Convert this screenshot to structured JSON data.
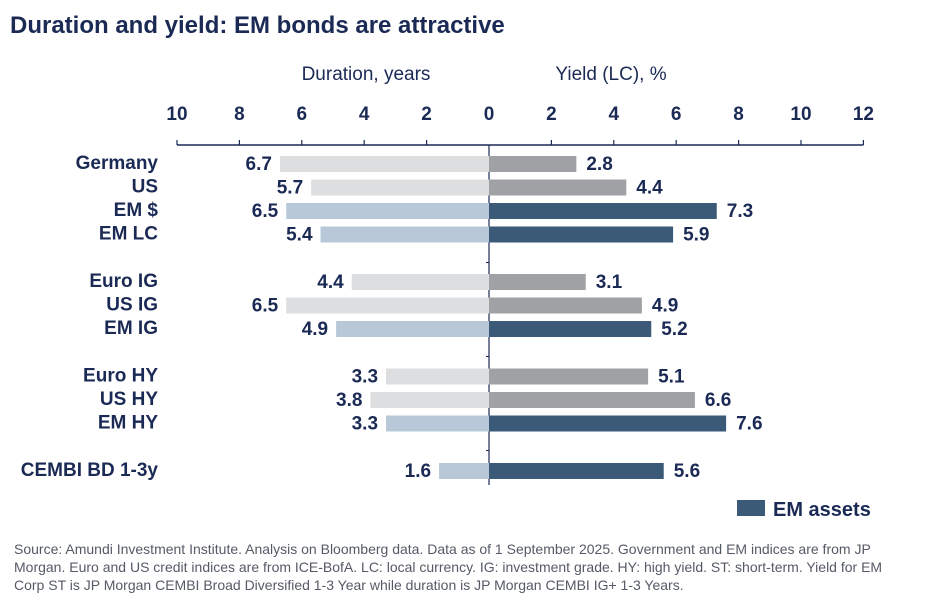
{
  "title": "Duration and yield: EM bonds are attractive",
  "source": "Source: Amundi Investment Institute. Analysis on Bloomberg data. Data as of 1 September 2025. Government and EM indices are from JP Morgan. Euro and US credit indices are from ICE-BofA. LC: local currency. IG: investment grade. HY: high yield. ST: short-term. Yield for EM Corp ST is JP Morgan CEMBI Broad Diversified 1-3 Year while duration is JP Morgan CEMBI IG+ 1-3 Years.",
  "colors": {
    "duration_other": "#dcdedf",
    "duration_em": "#b8c8d8",
    "yield_other": "#a0a1a4",
    "yield_em": "#3b5a78",
    "text": "#1b2a55",
    "axis": "#1b2a55"
  },
  "chart_data": {
    "type": "bar",
    "orientation": "horizontal-butterfly",
    "left_axis_title": "Duration, years",
    "right_axis_title": "Yield (LC), %",
    "left_range": [
      10,
      0
    ],
    "right_range": [
      0,
      12
    ],
    "left_ticks": [
      "10",
      "8",
      "6",
      "4",
      "2"
    ],
    "center_tick": "0",
    "right_ticks": [
      "2",
      "4",
      "6",
      "8",
      "10",
      "12"
    ],
    "categories": [
      "Germany",
      "US",
      "EM  $",
      "EM LC",
      "Euro IG",
      "US IG",
      "EM IG",
      "Euro HY",
      "US HY",
      "EM HY",
      "CEMBI BD 1-3y"
    ],
    "groups": [
      0,
      0,
      0,
      0,
      1,
      1,
      1,
      2,
      2,
      2,
      3
    ],
    "em_asset": [
      false,
      false,
      true,
      true,
      false,
      false,
      true,
      false,
      false,
      true,
      true
    ],
    "series": [
      {
        "name": "Duration, years",
        "values": [
          6.7,
          5.7,
          6.5,
          5.4,
          4.4,
          6.5,
          4.9,
          3.3,
          3.8,
          3.3,
          1.6
        ],
        "labels": [
          "6.7",
          "5.7",
          "6.5",
          "5.4",
          "4.4",
          "6.5",
          "4.9",
          "3.3",
          "3.8",
          "3.3",
          "1.6"
        ]
      },
      {
        "name": "Yield (LC), %",
        "values": [
          2.8,
          4.4,
          7.3,
          5.9,
          3.1,
          4.9,
          5.2,
          5.1,
          6.6,
          7.6,
          5.6
        ],
        "labels": [
          "2.8",
          "4.4",
          "7.3",
          "5.9",
          "3.1",
          "4.9",
          "5.2",
          "5.1",
          "6.6",
          "7.6",
          "5.6"
        ]
      }
    ],
    "legend": [
      {
        "label": "EM assets",
        "position": "bottom-right"
      }
    ]
  }
}
